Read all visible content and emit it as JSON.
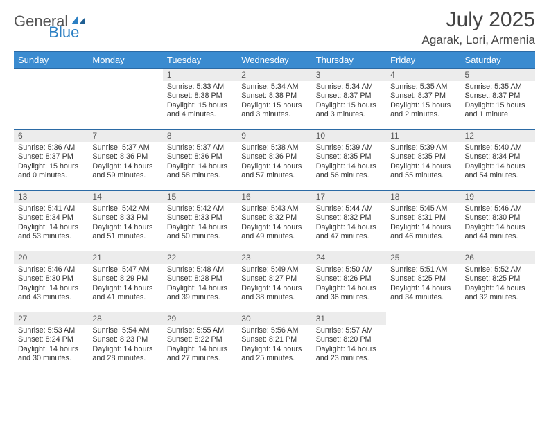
{
  "brand": {
    "part1": "General",
    "part2": "Blue"
  },
  "title": "July 2025",
  "location": "Agarak, Lori, Armenia",
  "colors": {
    "header_bg": "#3a8bd0",
    "header_border": "#2b6aa5",
    "daynum_bg": "#ececec",
    "text": "#333333",
    "brand_gray": "#555555",
    "brand_blue": "#2b7fc3"
  },
  "typography": {
    "title_fontsize": 30,
    "location_fontsize": 17,
    "header_fontsize": 13,
    "daynum_fontsize": 12,
    "body_fontsize": 10.8
  },
  "weekday_headers": [
    "Sunday",
    "Monday",
    "Tuesday",
    "Wednesday",
    "Thursday",
    "Friday",
    "Saturday"
  ],
  "weeks": [
    [
      null,
      null,
      {
        "n": "1",
        "sunrise": "5:33 AM",
        "sunset": "8:38 PM",
        "daylight": "15 hours and 4 minutes."
      },
      {
        "n": "2",
        "sunrise": "5:34 AM",
        "sunset": "8:38 PM",
        "daylight": "15 hours and 3 minutes."
      },
      {
        "n": "3",
        "sunrise": "5:34 AM",
        "sunset": "8:37 PM",
        "daylight": "15 hours and 3 minutes."
      },
      {
        "n": "4",
        "sunrise": "5:35 AM",
        "sunset": "8:37 PM",
        "daylight": "15 hours and 2 minutes."
      },
      {
        "n": "5",
        "sunrise": "5:35 AM",
        "sunset": "8:37 PM",
        "daylight": "15 hours and 1 minute."
      }
    ],
    [
      {
        "n": "6",
        "sunrise": "5:36 AM",
        "sunset": "8:37 PM",
        "daylight": "15 hours and 0 minutes."
      },
      {
        "n": "7",
        "sunrise": "5:37 AM",
        "sunset": "8:36 PM",
        "daylight": "14 hours and 59 minutes."
      },
      {
        "n": "8",
        "sunrise": "5:37 AM",
        "sunset": "8:36 PM",
        "daylight": "14 hours and 58 minutes."
      },
      {
        "n": "9",
        "sunrise": "5:38 AM",
        "sunset": "8:36 PM",
        "daylight": "14 hours and 57 minutes."
      },
      {
        "n": "10",
        "sunrise": "5:39 AM",
        "sunset": "8:35 PM",
        "daylight": "14 hours and 56 minutes."
      },
      {
        "n": "11",
        "sunrise": "5:39 AM",
        "sunset": "8:35 PM",
        "daylight": "14 hours and 55 minutes."
      },
      {
        "n": "12",
        "sunrise": "5:40 AM",
        "sunset": "8:34 PM",
        "daylight": "14 hours and 54 minutes."
      }
    ],
    [
      {
        "n": "13",
        "sunrise": "5:41 AM",
        "sunset": "8:34 PM",
        "daylight": "14 hours and 53 minutes."
      },
      {
        "n": "14",
        "sunrise": "5:42 AM",
        "sunset": "8:33 PM",
        "daylight": "14 hours and 51 minutes."
      },
      {
        "n": "15",
        "sunrise": "5:42 AM",
        "sunset": "8:33 PM",
        "daylight": "14 hours and 50 minutes."
      },
      {
        "n": "16",
        "sunrise": "5:43 AM",
        "sunset": "8:32 PM",
        "daylight": "14 hours and 49 minutes."
      },
      {
        "n": "17",
        "sunrise": "5:44 AM",
        "sunset": "8:32 PM",
        "daylight": "14 hours and 47 minutes."
      },
      {
        "n": "18",
        "sunrise": "5:45 AM",
        "sunset": "8:31 PM",
        "daylight": "14 hours and 46 minutes."
      },
      {
        "n": "19",
        "sunrise": "5:46 AM",
        "sunset": "8:30 PM",
        "daylight": "14 hours and 44 minutes."
      }
    ],
    [
      {
        "n": "20",
        "sunrise": "5:46 AM",
        "sunset": "8:30 PM",
        "daylight": "14 hours and 43 minutes."
      },
      {
        "n": "21",
        "sunrise": "5:47 AM",
        "sunset": "8:29 PM",
        "daylight": "14 hours and 41 minutes."
      },
      {
        "n": "22",
        "sunrise": "5:48 AM",
        "sunset": "8:28 PM",
        "daylight": "14 hours and 39 minutes."
      },
      {
        "n": "23",
        "sunrise": "5:49 AM",
        "sunset": "8:27 PM",
        "daylight": "14 hours and 38 minutes."
      },
      {
        "n": "24",
        "sunrise": "5:50 AM",
        "sunset": "8:26 PM",
        "daylight": "14 hours and 36 minutes."
      },
      {
        "n": "25",
        "sunrise": "5:51 AM",
        "sunset": "8:25 PM",
        "daylight": "14 hours and 34 minutes."
      },
      {
        "n": "26",
        "sunrise": "5:52 AM",
        "sunset": "8:25 PM",
        "daylight": "14 hours and 32 minutes."
      }
    ],
    [
      {
        "n": "27",
        "sunrise": "5:53 AM",
        "sunset": "8:24 PM",
        "daylight": "14 hours and 30 minutes."
      },
      {
        "n": "28",
        "sunrise": "5:54 AM",
        "sunset": "8:23 PM",
        "daylight": "14 hours and 28 minutes."
      },
      {
        "n": "29",
        "sunrise": "5:55 AM",
        "sunset": "8:22 PM",
        "daylight": "14 hours and 27 minutes."
      },
      {
        "n": "30",
        "sunrise": "5:56 AM",
        "sunset": "8:21 PM",
        "daylight": "14 hours and 25 minutes."
      },
      {
        "n": "31",
        "sunrise": "5:57 AM",
        "sunset": "8:20 PM",
        "daylight": "14 hours and 23 minutes."
      },
      null,
      null
    ]
  ],
  "labels": {
    "sunrise": "Sunrise:",
    "sunset": "Sunset:",
    "daylight": "Daylight:"
  }
}
